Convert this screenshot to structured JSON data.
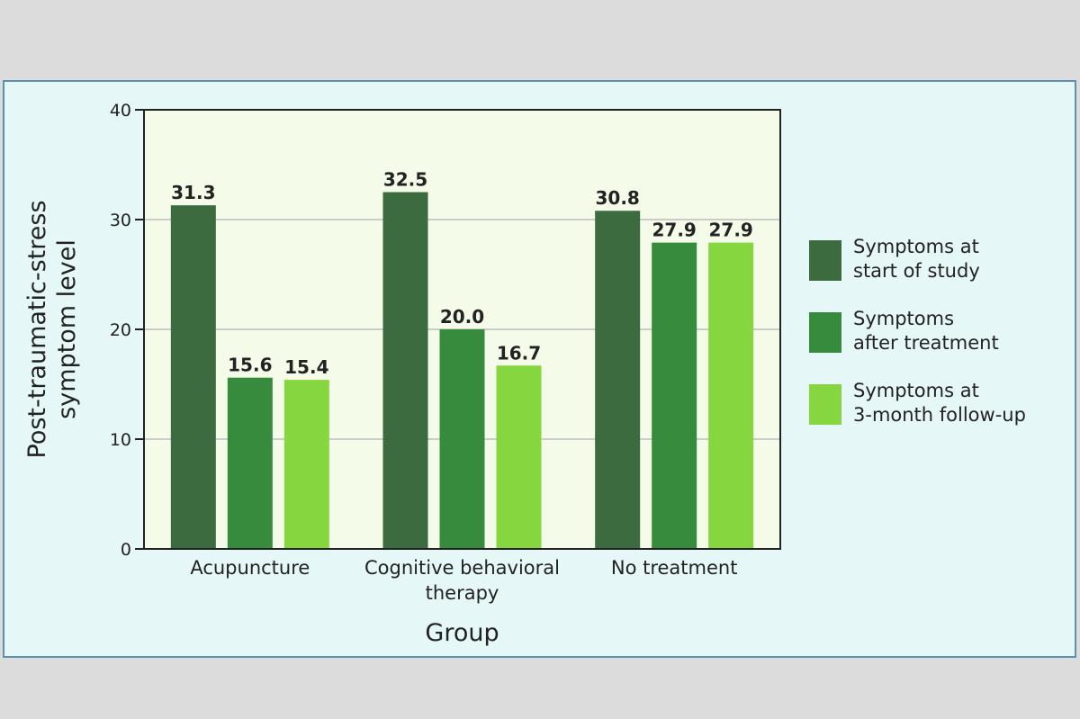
{
  "chart_data": {
    "type": "bar",
    "categories": [
      [
        "Acupuncture"
      ],
      [
        "Cognitive behavioral",
        "therapy"
      ],
      [
        "No treatment"
      ]
    ],
    "series": [
      {
        "name": [
          "Symptoms at",
          "start of study"
        ],
        "values": [
          31.3,
          32.5,
          30.8
        ],
        "labels": [
          "31.3",
          "32.5",
          "30.8"
        ],
        "color": "#3b6b3f"
      },
      {
        "name": [
          "Symptoms",
          "after treatment"
        ],
        "values": [
          15.6,
          20.0,
          27.9
        ],
        "labels": [
          "15.6",
          "20.0",
          "27.9"
        ],
        "color": "#368c3c"
      },
      {
        "name": [
          "Symptoms at",
          "3-month follow-up"
        ],
        "values": [
          15.4,
          16.7,
          27.9
        ],
        "labels": [
          "15.4",
          "16.7",
          "27.9"
        ],
        "color": "#86d640"
      }
    ],
    "ylabel": [
      "Post-traumatic-stress",
      "symptom level"
    ],
    "xlabel": "Group",
    "ylim": [
      0,
      40
    ],
    "yticks": [
      0,
      10,
      20,
      30,
      40
    ],
    "grid": true,
    "legend": "right",
    "plot_background": "#f4fbe8"
  }
}
